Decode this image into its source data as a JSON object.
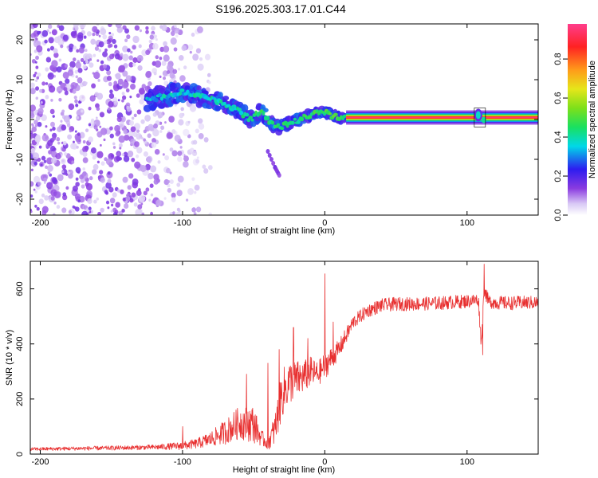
{
  "chart_data": [
    {
      "type": "heatmap",
      "title": "S196.2025.303.17.01.C44",
      "xlabel": "Height of straight line (km)",
      "ylabel": "Frequency (Hz)",
      "xlim": [
        -207,
        150
      ],
      "ylim": [
        -24,
        24
      ],
      "xticks": [
        -200,
        -100,
        0,
        100
      ],
      "yticks": [
        -20,
        -10,
        0,
        10,
        20
      ],
      "colorbar": {
        "label": "Normalized spectral amplitude",
        "range": [
          0,
          0.98
        ],
        "ticks": [
          0.0,
          0.2,
          0.4,
          0.6,
          0.8
        ]
      },
      "features": [
        {
          "name": "noise-speckle",
          "x_range": [
            -207,
            -95
          ],
          "freq_range": [
            -24,
            24
          ],
          "amplitude": 0.15
        },
        {
          "name": "chirp-ridge",
          "points": [
            [
              -125,
              5
            ],
            [
              -110,
              6
            ],
            [
              -100,
              7
            ],
            [
              -90,
              6
            ],
            [
              -80,
              5
            ],
            [
              -70,
              4
            ],
            [
              -60,
              2
            ],
            [
              -52,
              0
            ],
            [
              -45,
              2
            ],
            [
              -38,
              -1
            ],
            [
              -32,
              -2
            ],
            [
              -25,
              -1
            ],
            [
              -18,
              0
            ],
            [
              -10,
              1
            ],
            [
              -5,
              2
            ],
            [
              0,
              2
            ],
            [
              5,
              1
            ],
            [
              10,
              0.5
            ],
            [
              15,
              0.5
            ]
          ],
          "amplitude": 0.35
        },
        {
          "name": "secondary-branch",
          "points": [
            [
              -40,
              -8
            ],
            [
              -35,
              -12
            ],
            [
              -32,
              -14
            ]
          ],
          "amplitude": 0.12
        },
        {
          "name": "flat-signal",
          "x_range": [
            15,
            150
          ],
          "freq": 0.5,
          "amplitude": 0.97
        },
        {
          "name": "glitch",
          "x": 109,
          "freq": 0.5,
          "amplitude": 0.45
        }
      ]
    },
    {
      "type": "line",
      "title": "",
      "xlabel": "Height of straight line (km)",
      "ylabel": "SNR (10 * v/v)",
      "xlim": [
        -207,
        150
      ],
      "ylim": [
        0,
        700
      ],
      "xticks": [
        -200,
        -100,
        0,
        100
      ],
      "yticks": [
        0,
        200,
        400,
        600
      ],
      "series": [
        {
          "name": "SNR",
          "color": "#e83030",
          "x": [
            -207,
            -180,
            -150,
            -120,
            -100,
            -90,
            -80,
            -70,
            -60,
            -50,
            -45,
            -40,
            -35,
            -30,
            -25,
            -20,
            -15,
            -10,
            -5,
            0,
            5,
            10,
            15,
            20,
            25,
            30,
            40,
            50,
            60,
            80,
            100,
            108,
            110,
            112,
            115,
            120,
            130,
            140,
            150
          ],
          "y": [
            18,
            20,
            22,
            25,
            30,
            38,
            55,
            80,
            115,
            110,
            60,
            40,
            90,
            220,
            260,
            270,
            280,
            300,
            290,
            320,
            350,
            380,
            430,
            480,
            500,
            520,
            540,
            545,
            545,
            548,
            555,
            560,
            400,
            600,
            555,
            550,
            548,
            550,
            550
          ],
          "noise": [
            6,
            7,
            8,
            9,
            15,
            18,
            28,
            45,
            60,
            70,
            30,
            25,
            60,
            90,
            80,
            70,
            60,
            55,
            45,
            50,
            40,
            35,
            30,
            25,
            25,
            25,
            25,
            25,
            25,
            25,
            25,
            25,
            25,
            25,
            25,
            25,
            25,
            25,
            25
          ]
        }
      ],
      "spikes": [
        {
          "x": -100,
          "y": 100
        },
        {
          "x": -55,
          "y": 290
        },
        {
          "x": -40,
          "y": 330
        },
        {
          "x": -32,
          "y": 380
        },
        {
          "x": -22,
          "y": 460
        },
        {
          "x": -12,
          "y": 420
        },
        {
          "x": 0,
          "y": 655
        },
        {
          "x": 6,
          "y": 480
        },
        {
          "x": 112,
          "y": 690
        },
        {
          "x": 111,
          "y": 360
        }
      ]
    }
  ]
}
